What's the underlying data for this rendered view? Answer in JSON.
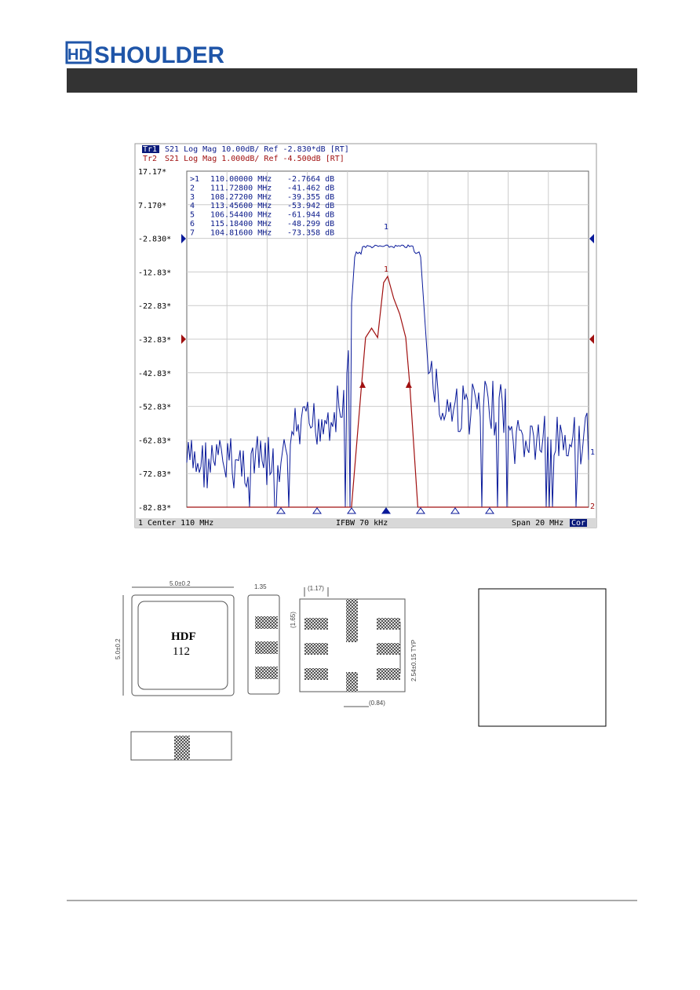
{
  "header": {
    "logo_mark": "HD",
    "logo_text": "SHOULDER"
  },
  "analyzer": {
    "trace1": "Tr1",
    "trace1_info": "S21 Log Mag 10.00dB/ Ref -2.830*dB [RT]",
    "trace2": "Tr2",
    "trace2_info": "S21 Log Mag 1.000dB/ Ref -4.500dB [RT]",
    "y_labels": [
      "17.17*",
      "7.170*",
      "-2.830*",
      "-12.83*",
      "-22.83*",
      "-32.83*",
      "-42.83*",
      "-52.83*",
      "-62.83*",
      "-72.83*",
      "-82.83*"
    ],
    "markers": [
      {
        "id": ">1",
        "freq": "110.00000 MHz",
        "value": "-2.7664 dB"
      },
      {
        "id": "2",
        "freq": "111.72800 MHz",
        "value": "-41.462 dB"
      },
      {
        "id": "3",
        "freq": "108.27200 MHz",
        "value": "-39.355 dB"
      },
      {
        "id": "4",
        "freq": "113.45600 MHz",
        "value": "-53.942 dB"
      },
      {
        "id": "5",
        "freq": "106.54400 MHz",
        "value": "-61.944 dB"
      },
      {
        "id": "6",
        "freq": "115.18400 MHz",
        "value": "-48.299 dB"
      },
      {
        "id": "7",
        "freq": "104.81600 MHz",
        "value": "-73.358 dB"
      }
    ],
    "trace_tags": [
      "1",
      "2"
    ],
    "status": {
      "channel": "1",
      "center": "Center 110 MHz",
      "ifbw": "IFBW 70 kHz",
      "span": "Span 20 MHz",
      "cor": "Cor"
    }
  },
  "drawing": {
    "top_label": "5.0±0.2",
    "side_label": "5.0±0.2",
    "height_label": "1.35",
    "pitch_label": "(1.17)",
    "pad_label": "(1.65)",
    "typ_label": "2.54±0.15 TYP",
    "gap_label": "(0.84)",
    "marking": [
      "HDF",
      "112"
    ]
  }
}
